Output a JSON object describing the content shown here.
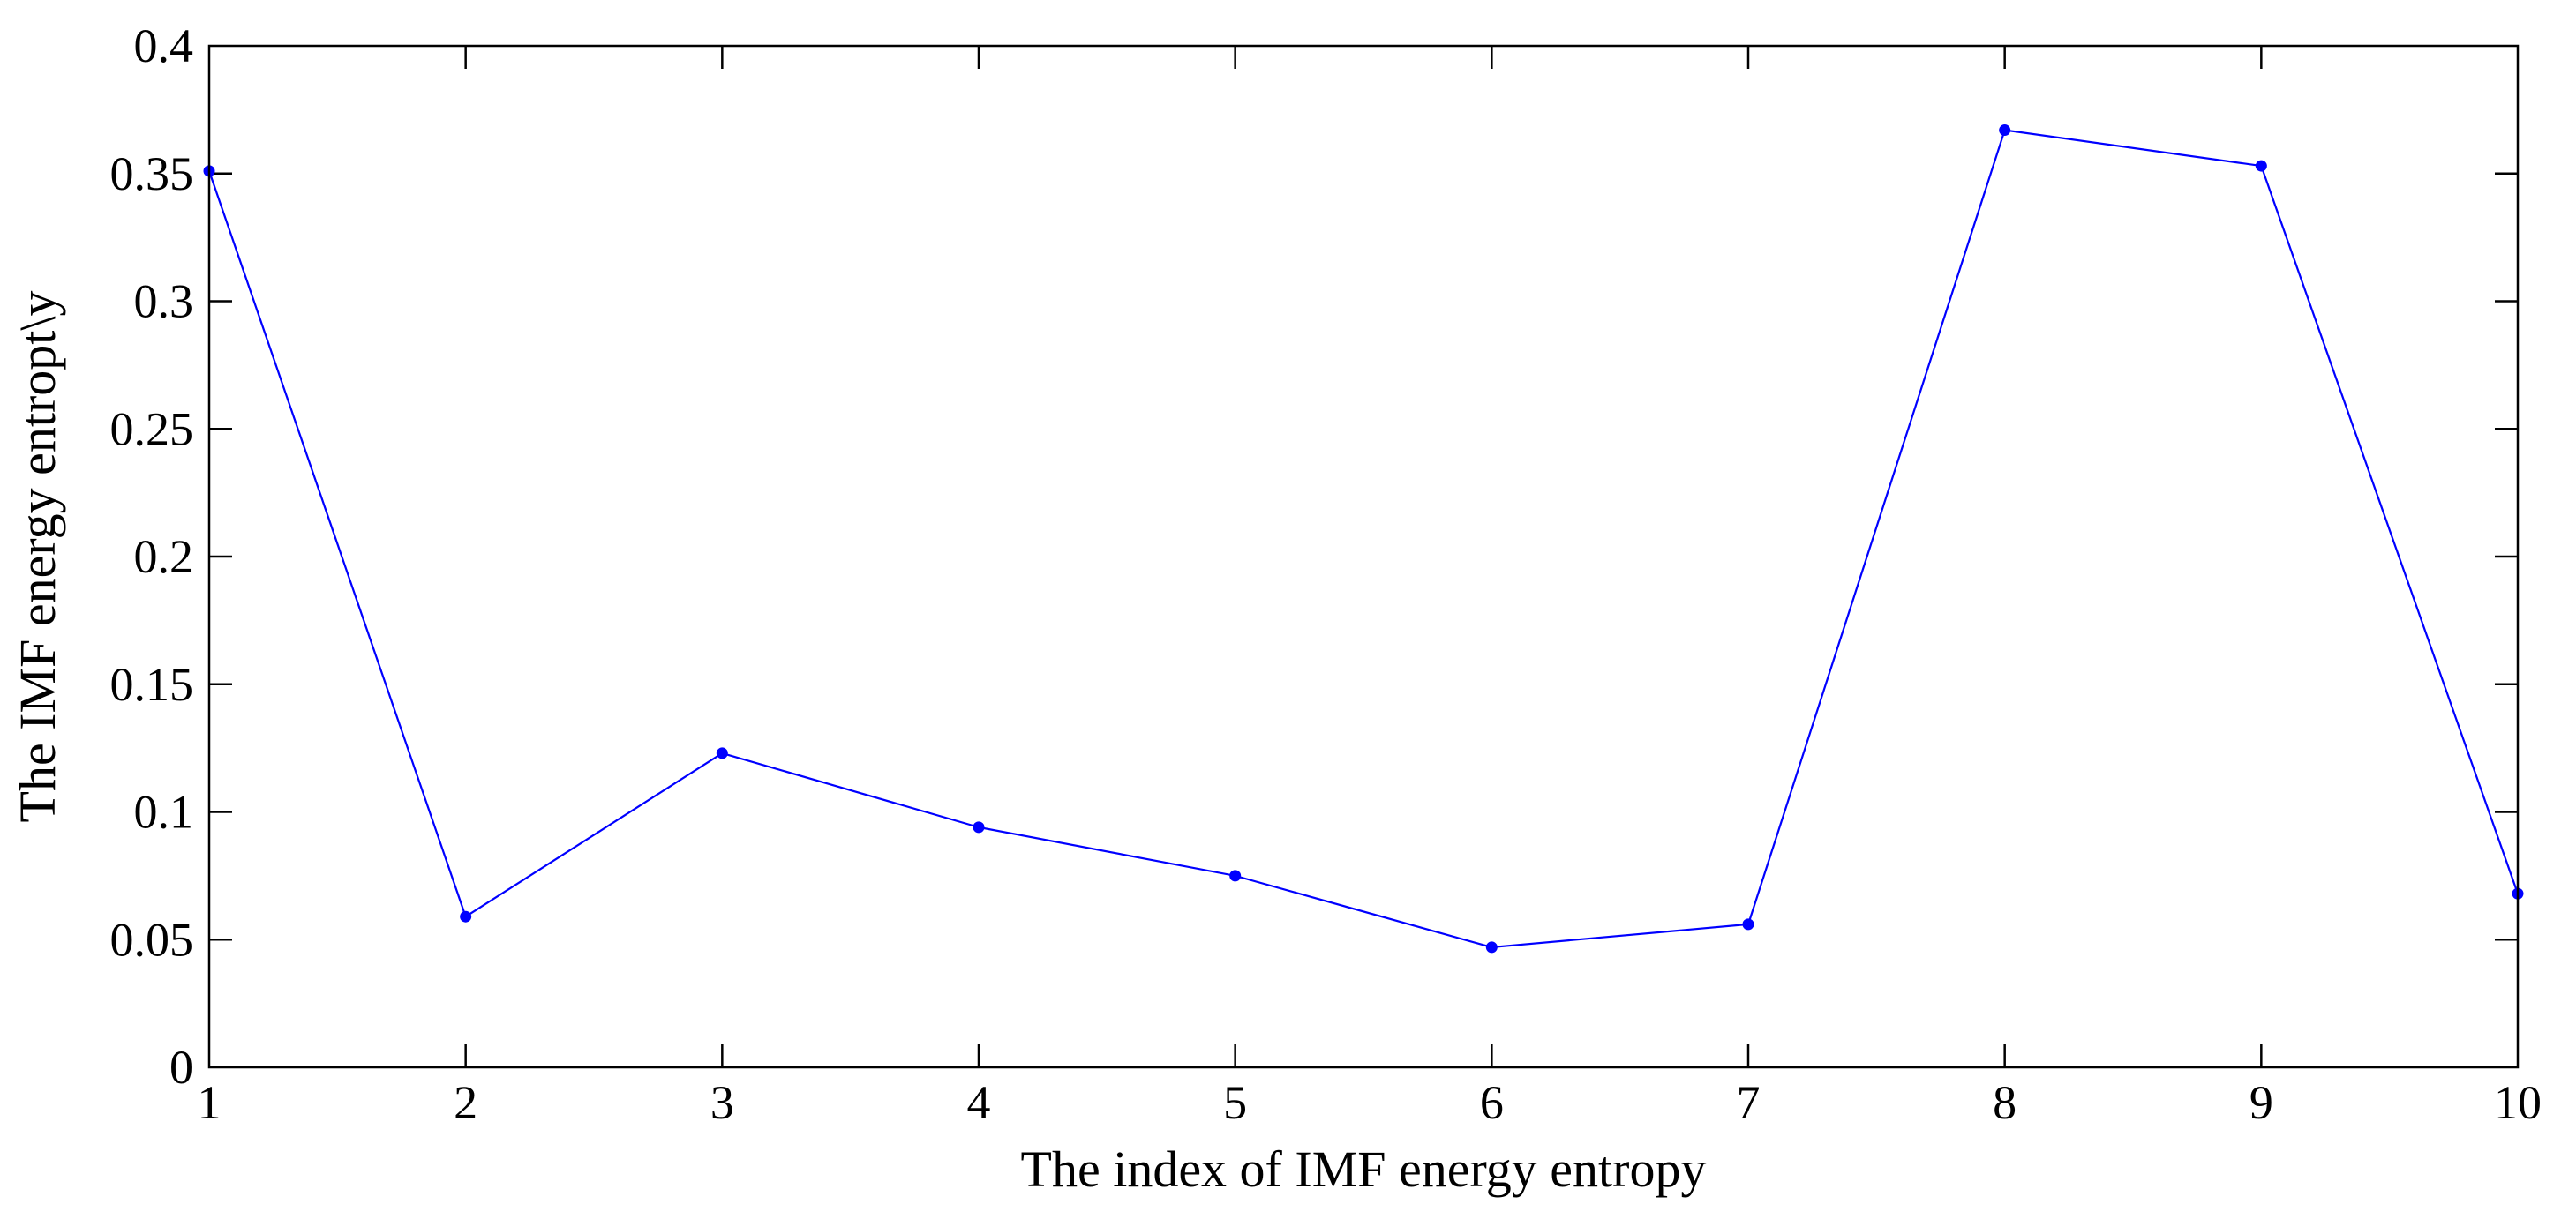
{
  "chart_data": {
    "type": "line",
    "title": "",
    "xlabel": "The index of IMF energy entropy",
    "ylabel": "The IMF energy entropt\\y",
    "xlim": [
      1,
      10
    ],
    "ylim": [
      0,
      0.4
    ],
    "xticks": [
      "1",
      "2",
      "3",
      "4",
      "5",
      "6",
      "7",
      "8",
      "9",
      "10"
    ],
    "yticks": [
      "0",
      "0.05",
      "0.1",
      "0.15",
      "0.2",
      "0.25",
      "0.3",
      "0.35",
      "0.4"
    ],
    "grid": false,
    "legend": "none",
    "series": [
      {
        "color": "#0000ff",
        "marker": "dot",
        "x": [
          1,
          2,
          3,
          4,
          5,
          6,
          7,
          8,
          9,
          10
        ],
        "values": [
          0.351,
          0.059,
          0.123,
          0.094,
          0.075,
          0.047,
          0.056,
          0.367,
          0.353,
          0.068
        ]
      }
    ]
  }
}
